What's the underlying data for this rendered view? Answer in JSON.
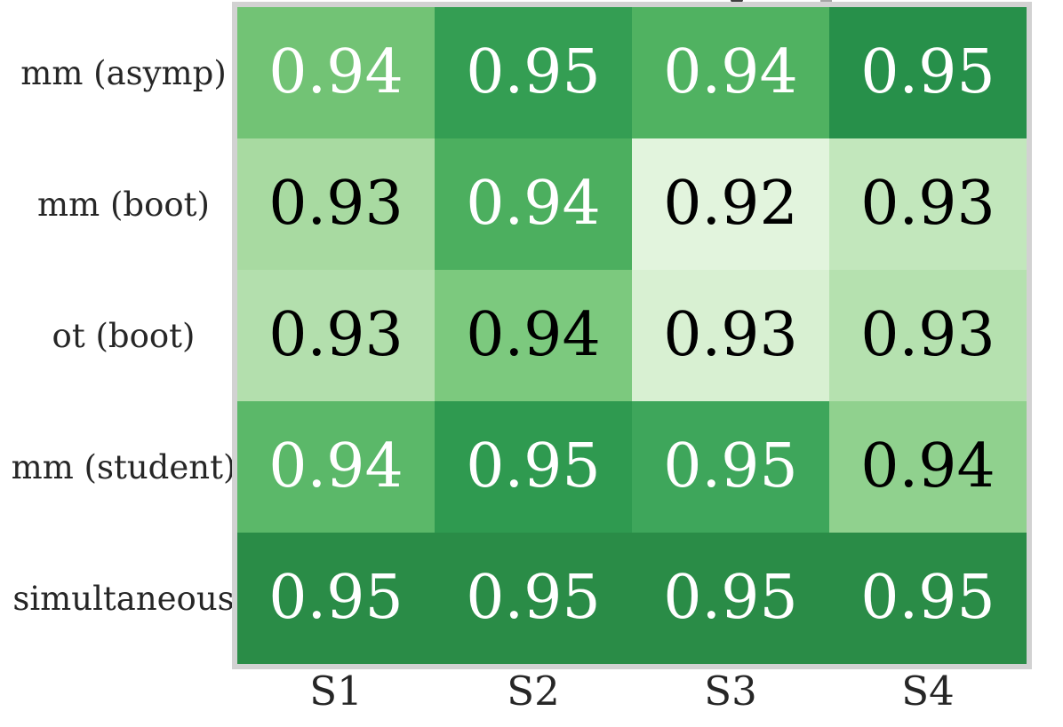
{
  "chart_data": {
    "type": "heatmap",
    "title": "",
    "rows": [
      "mm (asymp)",
      "mm (boot)",
      "ot (boot)",
      "mm (student)",
      "simultaneous"
    ],
    "columns": [
      "S1",
      "S2",
      "S3",
      "S4"
    ],
    "values": [
      [
        0.94,
        0.95,
        0.94,
        0.95
      ],
      [
        0.93,
        0.94,
        0.92,
        0.93
      ],
      [
        0.93,
        0.94,
        0.93,
        0.93
      ],
      [
        0.94,
        0.95,
        0.95,
        0.94
      ],
      [
        0.95,
        0.95,
        0.95,
        0.95
      ]
    ],
    "cell_colors": [
      [
        "#72c375",
        "#349e53",
        "#50b261",
        "#27904a"
      ],
      [
        "#a8daa1",
        "#4caf5f",
        "#e2f4dd",
        "#c2e7bc"
      ],
      [
        "#b3dfad",
        "#7cc97e",
        "#d8f0d2",
        "#b5e1af"
      ],
      [
        "#5bb869",
        "#2f9a50",
        "#3ea65b",
        "#90d18e"
      ],
      [
        "#2a8c47",
        "#2a8c47",
        "#2a8c47",
        "#2a8c47"
      ]
    ],
    "text_colors": [
      [
        "#ffffff",
        "#ffffff",
        "#ffffff",
        "#ffffff"
      ],
      [
        "#000000",
        "#ffffff",
        "#000000",
        "#000000"
      ],
      [
        "#000000",
        "#000000",
        "#000000",
        "#000000"
      ],
      [
        "#ffffff",
        "#ffffff",
        "#ffffff",
        "#000000"
      ],
      [
        "#ffffff",
        "#ffffff",
        "#ffffff",
        "#ffffff"
      ]
    ],
    "colormap": "Greens",
    "value_format": "0.00",
    "value_range_shown": [
      0.92,
      0.95
    ],
    "legend": "none",
    "grid": "off",
    "layout": {
      "row_labels_position": "left",
      "col_labels_position": "bottom"
    }
  },
  "colors": {
    "background": "#ffffff",
    "frame_border": "#d2d2d2",
    "axis_label_text": "#262626"
  }
}
